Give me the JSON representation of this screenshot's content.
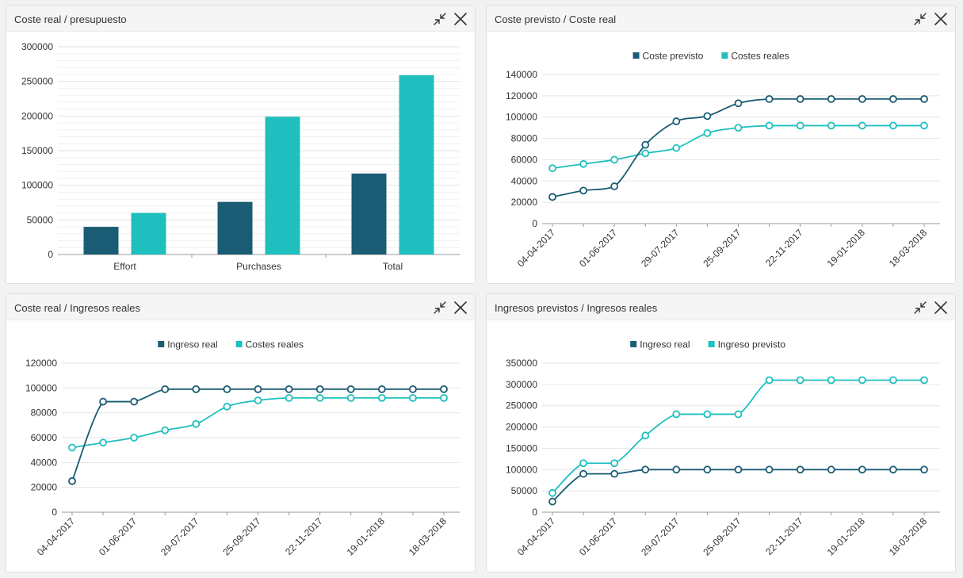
{
  "colors": {
    "dark": "#1a5c73",
    "teal": "#20bfbf"
  },
  "panels": [
    {
      "title": "Coste real / presupuesto",
      "chart_data": {
        "type": "bar",
        "categories": [
          "Effort",
          "Purchases",
          "Total"
        ],
        "series": [
          {
            "values": [
              40000,
              76000,
              117000
            ],
            "color": "#1a5c73"
          },
          {
            "values": [
              60000,
              199000,
              259000
            ],
            "color": "#20bfbf"
          }
        ],
        "ylim": [
          0,
          300000
        ],
        "yticks": [
          "0",
          "50000",
          "100000",
          "150000",
          "200000",
          "250000",
          "300000"
        ],
        "ytick_values": [
          0,
          50000,
          100000,
          150000,
          200000,
          250000,
          300000
        ],
        "grid": true,
        "legend": "none"
      }
    },
    {
      "title": "Coste previsto / Coste real",
      "chart_data": {
        "type": "line",
        "legend": "top-center",
        "xticks": [
          "04-04-2017",
          "01-06-2017",
          "29-07-2017",
          "25-09-2017",
          "22-11-2017",
          "19-01-2018",
          "18-03-2018"
        ],
        "ylim": [
          0,
          140000
        ],
        "yticks": [
          "0",
          "20000",
          "40000",
          "60000",
          "80000",
          "100000",
          "120000",
          "140000"
        ],
        "ytick_values": [
          0,
          20000,
          40000,
          60000,
          80000,
          100000,
          120000,
          140000
        ],
        "grid": true,
        "series": [
          {
            "name": "Coste previsto",
            "color": "#1a5c73",
            "values": [
              25000,
              31000,
              35000,
              74000,
              96000,
              101000,
              113000,
              117000,
              117000,
              117000,
              117000,
              117000,
              117000
            ]
          },
          {
            "name": "Costes reales",
            "color": "#20bfbf",
            "values": [
              52000,
              56000,
              60000,
              66000,
              71000,
              85000,
              90000,
              92000,
              92000,
              92000,
              92000,
              92000,
              92000
            ]
          }
        ]
      }
    },
    {
      "title": "Coste real / Ingresos reales",
      "chart_data": {
        "type": "line",
        "legend": "top-center",
        "xticks": [
          "04-04-2017",
          "01-06-2017",
          "29-07-2017",
          "25-09-2017",
          "22-11-2017",
          "19-01-2018",
          "18-03-2018"
        ],
        "ylim": [
          0,
          120000
        ],
        "yticks": [
          "0",
          "20000",
          "40000",
          "60000",
          "80000",
          "100000",
          "120000"
        ],
        "ytick_values": [
          0,
          20000,
          40000,
          60000,
          80000,
          100000,
          120000
        ],
        "grid": true,
        "series": [
          {
            "name": "Ingreso real",
            "color": "#1a5c73",
            "values": [
              25000,
              89000,
              89000,
              99000,
              99000,
              99000,
              99000,
              99000,
              99000,
              99000,
              99000,
              99000,
              99000
            ]
          },
          {
            "name": "Costes reales",
            "color": "#20bfbf",
            "values": [
              52000,
              56000,
              60000,
              66000,
              71000,
              85000,
              90000,
              92000,
              92000,
              92000,
              92000,
              92000,
              92000
            ]
          }
        ]
      }
    },
    {
      "title": "Ingresos previstos / Ingresos reales",
      "chart_data": {
        "type": "line",
        "legend": "top-center",
        "xticks": [
          "04-04-2017",
          "01-06-2017",
          "29-07-2017",
          "25-09-2017",
          "22-11-2017",
          "19-01-2018",
          "18-03-2018"
        ],
        "ylim": [
          0,
          350000
        ],
        "yticks": [
          "0",
          "50000",
          "100000",
          "150000",
          "200000",
          "250000",
          "300000",
          "350000"
        ],
        "ytick_values": [
          0,
          50000,
          100000,
          150000,
          200000,
          250000,
          300000,
          350000
        ],
        "grid": true,
        "series": [
          {
            "name": "Ingreso real",
            "color": "#1a5c73",
            "values": [
              25000,
              90000,
              90000,
              100000,
              100000,
              100000,
              100000,
              100000,
              100000,
              100000,
              100000,
              100000,
              100000
            ]
          },
          {
            "name": "Ingreso previsto",
            "color": "#20bfbf",
            "values": [
              45000,
              115000,
              115000,
              180000,
              230000,
              230000,
              230000,
              310000,
              310000,
              310000,
              310000,
              310000,
              310000
            ]
          }
        ]
      }
    }
  ]
}
